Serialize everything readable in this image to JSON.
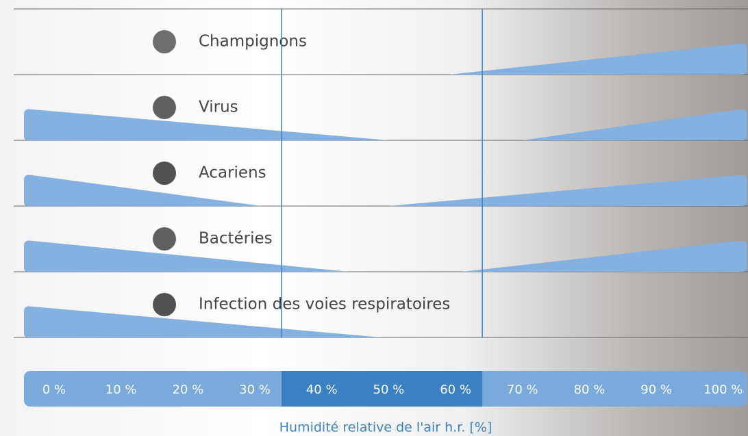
{
  "chart_data": {
    "type": "wedge",
    "x_label": "Humidité relative de l'air h.r. [%]",
    "xlim": [
      -4.5,
      103.5
    ],
    "xticks": [
      {
        "value": 0,
        "label": "0 %"
      },
      {
        "value": 10,
        "label": "10 %"
      },
      {
        "value": 20,
        "label": "20 %"
      },
      {
        "value": 30,
        "label": "30 %"
      },
      {
        "value": 40,
        "label": "40 %"
      },
      {
        "value": 50,
        "label": "50 %"
      },
      {
        "value": 60,
        "label": "60 %"
      },
      {
        "value": 70,
        "label": "70 %"
      },
      {
        "value": 80,
        "label": "80 %"
      },
      {
        "value": 90,
        "label": "90 %"
      },
      {
        "value": 100,
        "label": "100 %"
      }
    ],
    "optimal_range": [
      34,
      64
    ],
    "color": "#85b1e0",
    "rows": [
      {
        "name": "Champignons",
        "increasing_from": 59
      },
      {
        "name": "Virus",
        "decreasing_to": 50,
        "increasing_from": 70
      },
      {
        "name": "Acariens",
        "decreasing_to": 31,
        "increasing_from": 50
      },
      {
        "name": "Bactéries",
        "decreasing_to": 44,
        "increasing_from": 61
      },
      {
        "name": "Infection des voies respiratoires",
        "decreasing_to": 49
      }
    ]
  }
}
